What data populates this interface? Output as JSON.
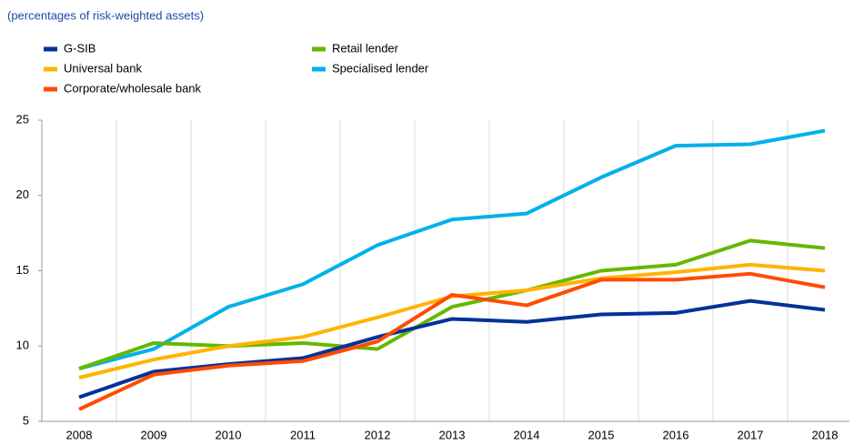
{
  "chart_data": {
    "type": "line",
    "subtitle": "(percentages of risk-weighted assets)",
    "categories": [
      "2008",
      "2009",
      "2010",
      "2011",
      "2012",
      "2013",
      "2014",
      "2015",
      "2016",
      "2017",
      "2018"
    ],
    "series": [
      {
        "name": "G-SIB",
        "color": "#003299",
        "values": [
          6.6,
          8.3,
          8.8,
          9.2,
          10.6,
          11.8,
          11.6,
          12.1,
          12.2,
          13.0,
          12.4
        ]
      },
      {
        "name": "Retail lender",
        "color": "#65b800",
        "values": [
          8.5,
          10.2,
          10.0,
          10.2,
          9.8,
          12.6,
          13.7,
          15.0,
          15.4,
          17.0,
          16.5
        ]
      },
      {
        "name": "Universal bank",
        "color": "#ffb400",
        "values": [
          7.9,
          9.1,
          10.0,
          10.6,
          11.9,
          13.3,
          13.7,
          14.5,
          14.9,
          15.4,
          15.0
        ]
      },
      {
        "name": "Specialised lender",
        "color": "#00b1ea",
        "values": [
          8.5,
          9.8,
          12.6,
          14.1,
          16.7,
          18.4,
          18.8,
          21.2,
          23.3,
          23.4,
          24.3
        ]
      },
      {
        "name": "Corporate/wholesale bank",
        "color": "#ff4b00",
        "values": [
          5.8,
          8.1,
          8.7,
          9.0,
          10.3,
          13.4,
          12.7,
          14.4,
          14.4,
          14.8,
          13.9
        ]
      }
    ],
    "ylim": [
      5,
      25
    ],
    "yticks": [
      5,
      10,
      15,
      20,
      25
    ],
    "grid": true
  }
}
